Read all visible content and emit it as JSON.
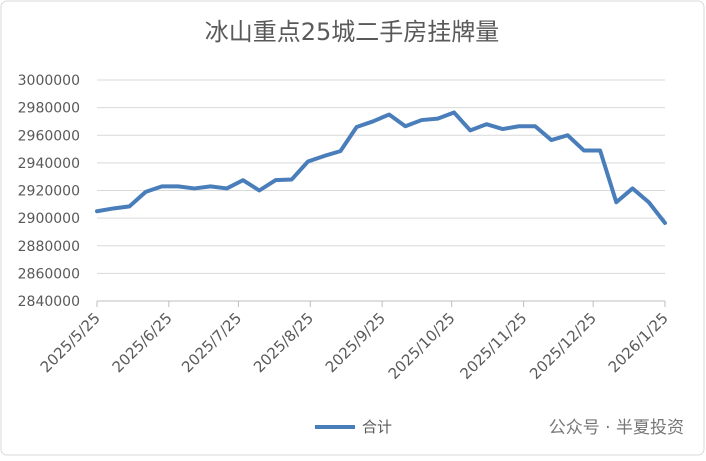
{
  "chart_data": {
    "type": "line",
    "title": "冰山重点25城二手房挂牌量",
    "x": [
      "2025/5/25",
      "2025/6/1",
      "2025/6/8",
      "2025/6/15",
      "2025/6/22",
      "2025/6/29",
      "2025/7/6",
      "2025/7/13",
      "2025/7/20",
      "2025/7/27",
      "2025/8/3",
      "2025/8/10",
      "2025/8/17",
      "2025/8/24",
      "2025/8/31",
      "2025/9/7",
      "2025/9/14",
      "2025/9/21",
      "2025/9/28",
      "2025/10/5",
      "2025/10/12",
      "2025/10/19",
      "2025/10/26",
      "2025/11/2",
      "2025/11/9",
      "2025/11/16",
      "2025/11/23",
      "2025/11/30",
      "2025/12/7",
      "2025/12/14",
      "2025/12/21",
      "2025/12/28",
      "2026/1/4",
      "2026/1/11",
      "2026/1/18",
      "2026/1/25"
    ],
    "series": [
      {
        "name": "合计",
        "color": "#4a7ebb",
        "values": [
          2905000,
          2907000,
          2908500,
          2919000,
          2923000,
          2923000,
          2921500,
          2923000,
          2921500,
          2927500,
          2920000,
          2927500,
          2928000,
          2941000,
          2945000,
          2948500,
          2966000,
          2970000,
          2975000,
          2966500,
          2971000,
          2972000,
          2976500,
          2963500,
          2968000,
          2964500,
          2966500,
          2966500,
          2956500,
          2960000,
          2949000,
          2949000,
          2911500,
          2921500,
          2911500,
          2896500
        ]
      }
    ],
    "xlim": [
      "2025/5/25",
      "2026/1/25"
    ],
    "xticks": [
      "2025/5/25",
      "2025/6/25",
      "2025/7/25",
      "2025/8/25",
      "2025/9/25",
      "2025/10/25",
      "2025/11/25",
      "2025/12/25",
      "2026/1/25"
    ],
    "ylim": [
      2840000,
      3000000
    ],
    "yticks": [
      2840000,
      2860000,
      2880000,
      2900000,
      2920000,
      2940000,
      2960000,
      2980000,
      3000000
    ],
    "grid": true,
    "legend": "bottom",
    "watermark": "公众号 · 半夏投资"
  }
}
